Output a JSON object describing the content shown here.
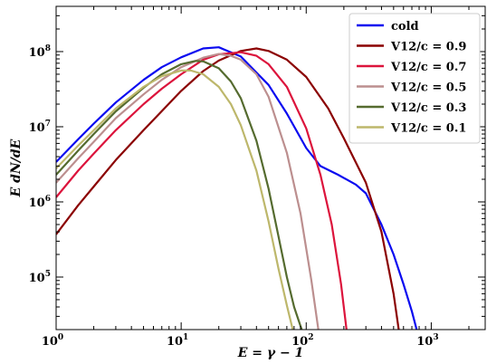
{
  "chart_data": {
    "type": "line",
    "xlabel": "E = γ − 1",
    "ylabel": "E dN/dE",
    "xscale": "log",
    "yscale": "log",
    "xlim": [
      1,
      2700
    ],
    "ylim": [
      20000,
      400000000
    ],
    "x_ticks": [
      {
        "base": "10",
        "exp": "0",
        "value": 1
      },
      {
        "base": "10",
        "exp": "1",
        "value": 10
      },
      {
        "base": "10",
        "exp": "2",
        "value": 100
      },
      {
        "base": "10",
        "exp": "3",
        "value": 1000
      }
    ],
    "y_ticks": [
      {
        "base": "10",
        "exp": "5",
        "value": 100000
      },
      {
        "base": "10",
        "exp": "6",
        "value": 1000000
      },
      {
        "base": "10",
        "exp": "7",
        "value": 10000000
      },
      {
        "base": "10",
        "exp": "8",
        "value": 100000000
      }
    ],
    "grid": false,
    "legend_position": "top-right",
    "series": [
      {
        "name": "cold",
        "color": "#0b0bf0",
        "x": [
          1,
          1.5,
          2,
          3,
          5,
          7,
          10,
          15,
          20,
          30,
          50,
          70,
          100,
          130,
          180,
          250,
          300,
          400,
          500,
          600,
          700,
          800
        ],
        "y": [
          3400000,
          6800000,
          11000000,
          21000000,
          42000000,
          62000000,
          84000000,
          110000000,
          114000000,
          86000000,
          36000000,
          15000000,
          5200000,
          3000000,
          2300000,
          1700000,
          1300000,
          500000,
          200000,
          80000,
          35000,
          15000
        ]
      },
      {
        "name": "V12/c = 0.9",
        "color": "#8b0000",
        "x": [
          1,
          1.5,
          2,
          3,
          5,
          10,
          15,
          20,
          30,
          40,
          50,
          70,
          100,
          150,
          200,
          300,
          400,
          500,
          550
        ],
        "y": [
          370000,
          900000,
          1600000,
          3600000,
          9000000,
          30000000,
          55000000,
          76000000,
          102000000,
          110000000,
          102000000,
          78000000,
          46000000,
          17500000,
          7000000,
          1800000,
          400000,
          60000,
          20000
        ]
      },
      {
        "name": "V12/c = 0.7",
        "color": "#dc143c",
        "x": [
          1,
          1.5,
          2,
          3,
          5,
          7,
          10,
          15,
          20,
          30,
          40,
          50,
          70,
          100,
          130,
          160,
          190,
          210
        ],
        "y": [
          1150000,
          2600000,
          4400000,
          9000000,
          20000000,
          32000000,
          50000000,
          78000000,
          92000000,
          98000000,
          88000000,
          68000000,
          34000000,
          9500000,
          2300000,
          500000,
          80000,
          20000
        ]
      },
      {
        "name": "V12/c = 0.5",
        "color": "#bc8f8f",
        "x": [
          1,
          1.5,
          2,
          3,
          5,
          7,
          10,
          15,
          20,
          25,
          30,
          40,
          50,
          70,
          90,
          110,
          125
        ],
        "y": [
          1800000,
          3800000,
          6300000,
          13000000,
          27000000,
          42000000,
          62000000,
          83000000,
          93000000,
          88000000,
          78000000,
          50000000,
          25000000,
          4500000,
          700000,
          90000,
          20000
        ]
      },
      {
        "name": "V12/c = 0.3",
        "color": "#556b2f",
        "x": [
          1,
          1.5,
          2,
          3,
          5,
          7,
          10,
          13,
          15,
          20,
          25,
          30,
          40,
          50,
          60,
          70,
          80,
          92
        ],
        "y": [
          2300000,
          4800000,
          8000000,
          16000000,
          33000000,
          50000000,
          68000000,
          75000000,
          74000000,
          60000000,
          40000000,
          24000000,
          6500000,
          1500000,
          350000,
          100000,
          40000,
          20000
        ]
      },
      {
        "name": "V12/c = 0.1",
        "color": "#bdb76b",
        "x": [
          1,
          1.5,
          2,
          3,
          5,
          7,
          10,
          12,
          15,
          20,
          25,
          30,
          40,
          50,
          60,
          70,
          78
        ],
        "y": [
          2800000,
          5600000,
          9000000,
          17500000,
          34000000,
          47000000,
          56000000,
          56000000,
          50000000,
          34000000,
          20000000,
          10500000,
          2600000,
          550000,
          130000,
          42000,
          20000
        ]
      }
    ]
  }
}
